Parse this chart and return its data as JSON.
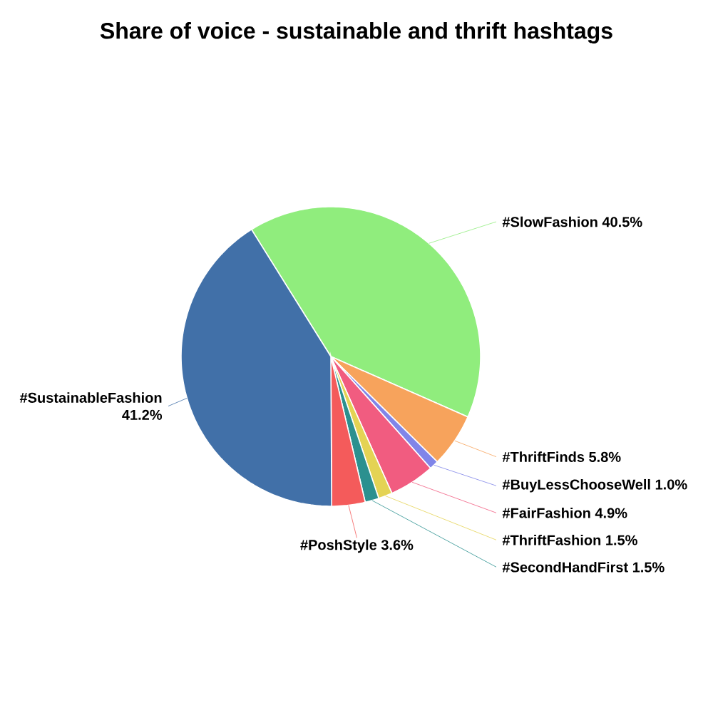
{
  "chart_data": {
    "type": "pie",
    "title": "Share of voice - sustainable and thrift hashtags",
    "categories": [
      "#SlowFashion",
      "#ThriftFinds",
      "#BuyLessChooseWell",
      "#FairFashion",
      "#ThriftFashion",
      "#SecondHandFirst",
      "#PoshStyle",
      "#SustainableFashion"
    ],
    "values": [
      40.5,
      5.8,
      1.0,
      4.9,
      1.5,
      1.5,
      3.6,
      41.2
    ],
    "value_labels": [
      "40.5%",
      "5.8%",
      "1.0%",
      "4.9%",
      "1.5%",
      "1.5%",
      "3.6%",
      "41.2%"
    ],
    "colors": [
      "#90ed7d",
      "#f7a35c",
      "#8085e9",
      "#f15c80",
      "#e4d354",
      "#2b908f",
      "#f45b5b",
      "#4170a8"
    ]
  }
}
